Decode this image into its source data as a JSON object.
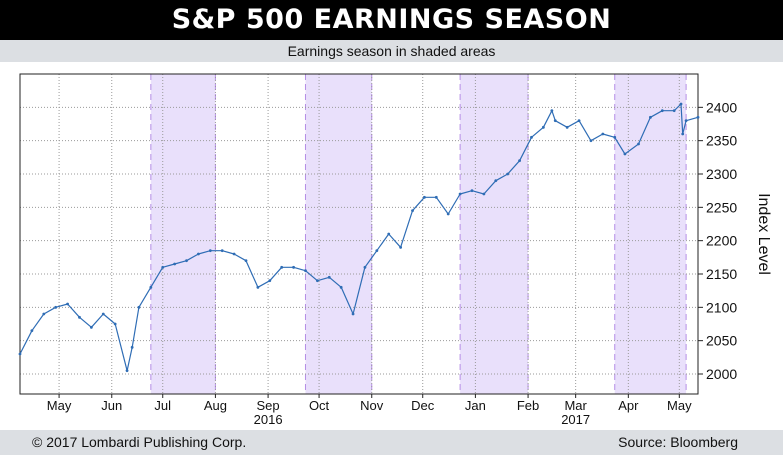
{
  "header": {
    "title": "S&P 500 EARNINGS SEASON",
    "subtitle": "Earnings season in shaded areas"
  },
  "footer": {
    "copyright": "© 2017 Lombardi Publishing Corp.",
    "source": "Source: Bloomberg"
  },
  "colors": {
    "line": "#2f6db5",
    "shade": "#e9e0fb",
    "shade_border": "#b58ee6",
    "grid": "#9a9a9a"
  },
  "chart_data": {
    "type": "line",
    "title": "S&P 500 EARNINGS SEASON",
    "subtitle": "Earnings season in shaded areas",
    "ylabel": "Index Level",
    "ylim": [
      1970,
      2450
    ],
    "yticks": [
      2000,
      2050,
      2100,
      2150,
      2200,
      2250,
      2300,
      2350,
      2400
    ],
    "x_range": [
      "2016-04-22",
      "2017-05-26"
    ],
    "month_ticks": [
      {
        "label": "May",
        "date": "2016-05-15"
      },
      {
        "label": "Jun",
        "date": "2016-06-15"
      },
      {
        "label": "Jul",
        "date": "2016-07-15"
      },
      {
        "label": "Aug",
        "date": "2016-08-15"
      },
      {
        "label": "Sep",
        "date": "2016-09-15"
      },
      {
        "label": "Oct",
        "date": "2016-10-15"
      },
      {
        "label": "Nov",
        "date": "2016-11-15"
      },
      {
        "label": "Dec",
        "date": "2016-12-15"
      },
      {
        "label": "Jan",
        "date": "2017-01-15"
      },
      {
        "label": "Feb",
        "date": "2017-02-15"
      },
      {
        "label": "Mar",
        "date": "2017-03-15"
      },
      {
        "label": "Apr",
        "date": "2017-04-15"
      },
      {
        "label": "May",
        "date": "2017-05-15"
      }
    ],
    "year_ticks": [
      {
        "label": "2016",
        "date": "2016-09-15"
      },
      {
        "label": "2017",
        "date": "2017-03-15"
      }
    ],
    "shaded_periods": [
      {
        "start": "2016-07-08",
        "end": "2016-08-15"
      },
      {
        "start": "2016-10-07",
        "end": "2016-11-15"
      },
      {
        "start": "2017-01-06",
        "end": "2017-02-15"
      },
      {
        "start": "2017-04-07",
        "end": "2017-05-19"
      }
    ],
    "series": [
      {
        "x": [
          "2016-04-22",
          "2016-04-29",
          "2016-05-06",
          "2016-05-13",
          "2016-05-20",
          "2016-05-27",
          "2016-06-03",
          "2016-06-10",
          "2016-06-17",
          "2016-06-24",
          "2016-06-27",
          "2016-07-01",
          "2016-07-08",
          "2016-07-15",
          "2016-07-22",
          "2016-07-29",
          "2016-08-05",
          "2016-08-12",
          "2016-08-19",
          "2016-08-26",
          "2016-09-02",
          "2016-09-09",
          "2016-09-16",
          "2016-09-23",
          "2016-09-30",
          "2016-10-07",
          "2016-10-14",
          "2016-10-21",
          "2016-10-28",
          "2016-11-04",
          "2016-11-11",
          "2016-11-18",
          "2016-11-25",
          "2016-12-02",
          "2016-12-09",
          "2016-12-16",
          "2016-12-23",
          "2016-12-30",
          "2017-01-06",
          "2017-01-13",
          "2017-01-20",
          "2017-01-27",
          "2017-02-03",
          "2017-02-10",
          "2017-02-17",
          "2017-02-24",
          "2017-03-01",
          "2017-03-03",
          "2017-03-10",
          "2017-03-17",
          "2017-03-24",
          "2017-03-31",
          "2017-04-07",
          "2017-04-13",
          "2017-04-21",
          "2017-04-28",
          "2017-05-05",
          "2017-05-12",
          "2017-05-16",
          "2017-05-17",
          "2017-05-19",
          "2017-05-26"
        ],
        "y": [
          2030,
          2065,
          2090,
          2100,
          2105,
          2085,
          2070,
          2090,
          2075,
          2005,
          2040,
          2100,
          2130,
          2160,
          2165,
          2170,
          2180,
          2185,
          2185,
          2180,
          2170,
          2130,
          2140,
          2160,
          2160,
          2155,
          2140,
          2145,
          2130,
          2090,
          2160,
          2185,
          2210,
          2190,
          2245,
          2265,
          2265,
          2240,
          2270,
          2275,
          2270,
          2290,
          2300,
          2320,
          2355,
          2370,
          2395,
          2380,
          2370,
          2380,
          2350,
          2360,
          2355,
          2330,
          2345,
          2385,
          2395,
          2395,
          2405,
          2360,
          2380,
          2385
        ]
      }
    ]
  }
}
